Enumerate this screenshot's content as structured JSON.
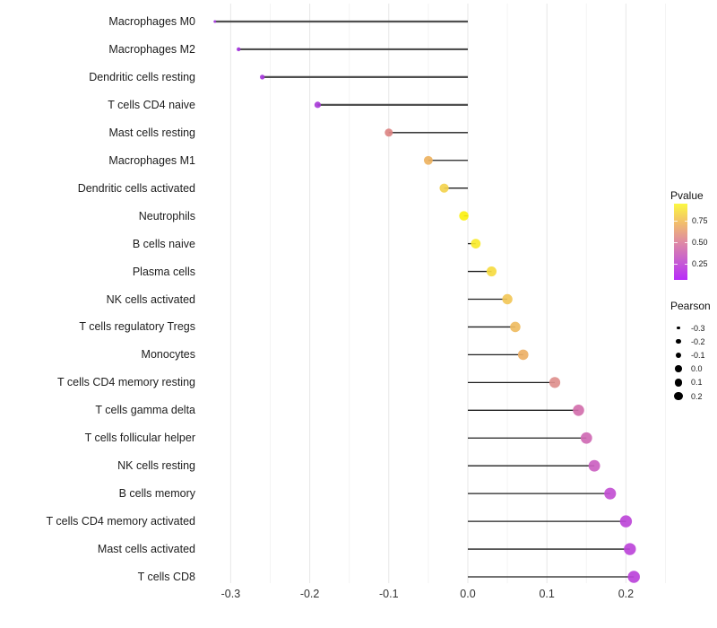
{
  "chart_data": {
    "type": "scatter",
    "subtype": "lollipop",
    "title": "",
    "xlabel": "",
    "ylabel": "",
    "xlim": [
      -0.37,
      0.26
    ],
    "x_ticks": [
      "-0.3",
      "-0.2",
      "-0.1",
      "0.0",
      "0.1",
      "0.2"
    ],
    "x_tick_values": [
      -0.3,
      -0.2,
      -0.1,
      0.0,
      0.1,
      0.2
    ],
    "x_minor_ticks": [
      -0.25,
      -0.15,
      -0.05,
      0.05,
      0.15,
      0.25
    ],
    "grid": "vertical major and minor gridlines, light gray, no panel border, white background",
    "legend_position": "right",
    "points": [
      {
        "label": "Macrophages M0",
        "pearson": -0.32,
        "pvalue_approx": 0.05,
        "color": "#A134DB"
      },
      {
        "label": "Macrophages M2",
        "pearson": -0.29,
        "pvalue_approx": 0.06,
        "color": "#A334DB"
      },
      {
        "label": "Dendritic cells resting",
        "pearson": -0.26,
        "pvalue_approx": 0.07,
        "color": "#A637DB"
      },
      {
        "label": "T cells CD4 naive",
        "pearson": -0.19,
        "pvalue_approx": 0.1,
        "color": "#A93CD9"
      },
      {
        "label": "Mast cells resting",
        "pearson": -0.1,
        "pvalue_approx": 0.55,
        "color": "#DC8483"
      },
      {
        "label": "Macrophages M1",
        "pearson": -0.05,
        "pvalue_approx": 0.72,
        "color": "#EDB25F"
      },
      {
        "label": "Dendritic cells activated",
        "pearson": -0.03,
        "pvalue_approx": 0.82,
        "color": "#F3D24E"
      },
      {
        "label": "Neutrophils",
        "pearson": -0.005,
        "pvalue_approx": 0.97,
        "color": "#FBF012"
      },
      {
        "label": "B cells naive",
        "pearson": 0.01,
        "pvalue_approx": 0.92,
        "color": "#F9EA2B"
      },
      {
        "label": "Plasma cells",
        "pearson": 0.03,
        "pvalue_approx": 0.85,
        "color": "#F6DB41"
      },
      {
        "label": "NK cells activated",
        "pearson": 0.05,
        "pvalue_approx": 0.79,
        "color": "#F2C758"
      },
      {
        "label": "T cells regulatory  Tregs",
        "pearson": 0.06,
        "pvalue_approx": 0.75,
        "color": "#EFBC61"
      },
      {
        "label": "Monocytes",
        "pearson": 0.07,
        "pvalue_approx": 0.71,
        "color": "#EDB066"
      },
      {
        "label": "T cells CD4 memory resting",
        "pearson": 0.11,
        "pvalue_approx": 0.54,
        "color": "#DE8F8D"
      },
      {
        "label": "T cells gamma delta",
        "pearson": 0.14,
        "pvalue_approx": 0.44,
        "color": "#D26FAD"
      },
      {
        "label": "T cells follicular helper",
        "pearson": 0.15,
        "pvalue_approx": 0.41,
        "color": "#CF6AB4"
      },
      {
        "label": "NK cells resting",
        "pearson": 0.16,
        "pvalue_approx": 0.37,
        "color": "#CB61C1"
      },
      {
        "label": "B cells memory",
        "pearson": 0.18,
        "pvalue_approx": 0.29,
        "color": "#C250D3"
      },
      {
        "label": "T cells CD4 memory activated",
        "pearson": 0.2,
        "pvalue_approx": 0.24,
        "color": "#BD47D8"
      },
      {
        "label": "Mast cells activated",
        "pearson": 0.205,
        "pvalue_approx": 0.23,
        "color": "#BC45D9"
      },
      {
        "label": "T cells CD8",
        "pearson": 0.21,
        "pvalue_approx": 0.22,
        "color": "#BB43DA"
      }
    ]
  },
  "legends": {
    "pvalue": {
      "title": "Pvalue",
      "ticks": [
        "0.75",
        "0.50",
        "0.25"
      ],
      "gradient_stops": [
        "#B92BFA",
        "#C75FD0",
        "#DF8BA3",
        "#F2BE6B",
        "#FBF842"
      ]
    },
    "pearson": {
      "title": "Pearson",
      "key_color": "#000000",
      "entries": [
        {
          "label": "-0.3",
          "diameter": 3.5
        },
        {
          "label": "-0.2",
          "diameter": 5.2
        },
        {
          "label": "-0.1",
          "diameter": 6.5
        },
        {
          "label": "0.0",
          "diameter": 7.6
        },
        {
          "label": "0.1",
          "diameter": 8.4
        },
        {
          "label": "0.2",
          "diameter": 9.2
        }
      ]
    }
  },
  "colors": {
    "background": "#ffffff",
    "grid_major": "#E7E7E7",
    "grid_minor": "#F4F4F4",
    "stem_thick": "#4F4F4F",
    "stem_thin": "#1F1F1F",
    "axis_text": "#323232",
    "label_text": "#1d1d1d"
  }
}
